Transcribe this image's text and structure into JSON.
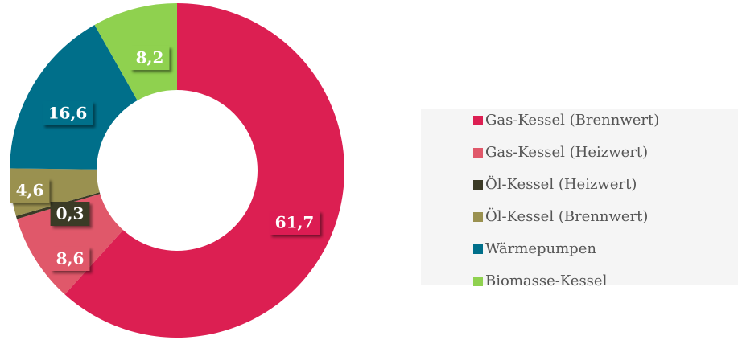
{
  "chart_data": {
    "type": "donut",
    "categories": [
      "Gas-Kessel (Brennwert)",
      "Gas-Kessel (Heizwert)",
      "Öl-Kessel (Heizwert)",
      "Öl-Kessel (Brennwert)",
      "Wärmepumpen",
      "Biomasse-Kessel"
    ],
    "values": [
      61.7,
      8.6,
      0.3,
      4.6,
      16.6,
      8.2
    ],
    "value_labels": [
      "61,7",
      "8,6",
      "0,3",
      "4,6",
      "16,6",
      "8,2"
    ],
    "colors": [
      "#dc1f52",
      "#e0586a",
      "#3b3a26",
      "#9a9150",
      "#006f8a",
      "#8fd14f"
    ],
    "legend": "right"
  }
}
